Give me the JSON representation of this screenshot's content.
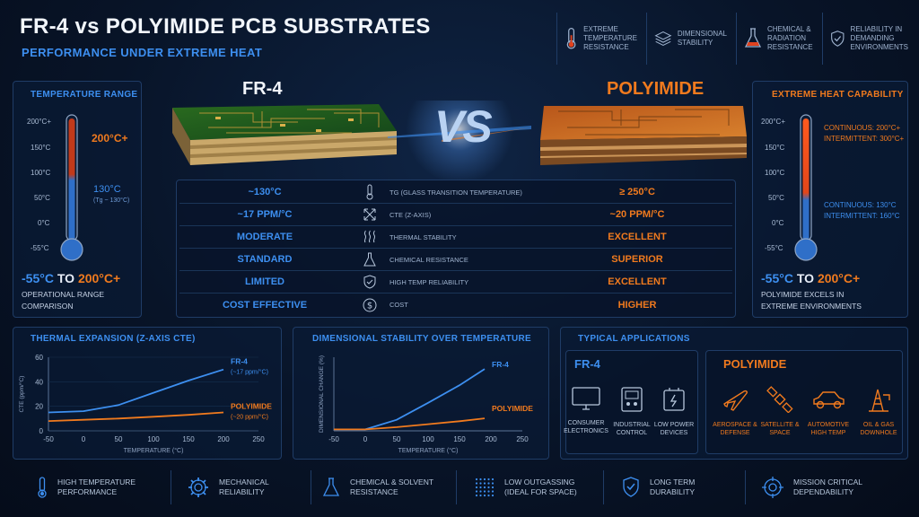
{
  "header": {
    "title": "FR-4 vs POLYIMIDE PCB SUBSTRATES",
    "subtitle": "PERFORMANCE UNDER EXTREME HEAT"
  },
  "features_top": [
    {
      "label_line1": "EXTREME",
      "label_line2": "TEMPERATURE",
      "label_line3": "RESISTANCE",
      "icon": "thermometer-icon"
    },
    {
      "label_line1": "DIMENSIONAL",
      "label_line2": "STABILITY",
      "label_line3": "",
      "icon": "layers-icon"
    },
    {
      "label_line1": "CHEMICAL &",
      "label_line2": "RADIATION",
      "label_line3": "RESISTANCE",
      "icon": "flask-icon"
    },
    {
      "label_line1": "RELIABILITY IN",
      "label_line2": "DEMANDING",
      "label_line3": "ENVIRONMENTS",
      "icon": "shield-check-icon"
    }
  ],
  "left_panel": {
    "title": "TEMPERATURE RANGE",
    "ticks": [
      "200°C+",
      "150°C",
      "100°C",
      "50°C",
      "0°C",
      "-55°C"
    ],
    "hot_label": "200°C+",
    "tg_label": "130°C",
    "tg_note": "(Tg ~ 130°C)",
    "range_low": "-55°C",
    "range_to": "TO",
    "range_high": "200°C+",
    "caption_line1": "OPERATIONAL RANGE",
    "caption_line2": "COMPARISON"
  },
  "right_panel": {
    "title": "EXTREME HEAT CAPABILITY",
    "ticks": [
      "200°C+",
      "150°C",
      "100°C",
      "50°C",
      "0°C",
      "-55°C"
    ],
    "continuous_hot": "CONTINUOUS: 200°C+",
    "intermittent_hot": "INTERMITTENT: 300°C+",
    "continuous_low": "CONTINUOUS: 130°C",
    "intermittent_low": "INTERMITTENT: 160°C",
    "range_low": "-55°C",
    "range_to": "TO",
    "range_high": "200°C+",
    "caption_line1": "POLYIMIDE EXCELS IN",
    "caption_line2": "EXTREME ENVIRONMENTS"
  },
  "compare": {
    "left_name": "FR-4",
    "vs": "VS",
    "right_name": "POLYIMIDE",
    "rows": [
      {
        "fr4": "~130°C",
        "icon": "thermometer-icon",
        "prop": "Tg (GLASS TRANSITION TEMPERATURE)",
        "pi": "≥ 250°C"
      },
      {
        "fr4": "~17 ppm/°C",
        "icon": "expand-arrows-icon",
        "prop": "CTE (Z-AXIS)",
        "pi": "~20 ppm/°C"
      },
      {
        "fr4": "MODERATE",
        "icon": "heat-waves-icon",
        "prop": "THERMAL STABILITY",
        "pi": "EXCELLENT"
      },
      {
        "fr4": "STANDARD",
        "icon": "flask-icon",
        "prop": "CHEMICAL RESISTANCE",
        "pi": "SUPERIOR"
      },
      {
        "fr4": "LIMITED",
        "icon": "shield-check-icon",
        "prop": "HIGH TEMP RELIABILITY",
        "pi": "EXCELLENT"
      },
      {
        "fr4": "COST EFFECTIVE",
        "icon": "dollar-icon",
        "prop": "COST",
        "pi": "HIGHER"
      }
    ]
  },
  "chart_data": [
    {
      "type": "line",
      "title": "THERMAL EXPANSION (Z-AXIS CTE)",
      "xlabel": "TEMPERATURE (°C)",
      "ylabel": "CTE (ppm/°C)",
      "xlim": [
        -50,
        250
      ],
      "ylim": [
        0,
        60
      ],
      "xticks": [
        "-50",
        "0",
        "50",
        "100",
        "150",
        "200",
        "250"
      ],
      "yticks": [
        "60",
        "40",
        "20",
        "0"
      ],
      "series": [
        {
          "name": "FR-4",
          "note": "(~17 ppm/°C)",
          "color": "#3d8ff0",
          "x": [
            -50,
            0,
            50,
            100,
            150,
            200
          ],
          "y": [
            15,
            16,
            21,
            31,
            41,
            50
          ]
        },
        {
          "name": "POLYIMIDE",
          "note": "(~20 ppm/°C)",
          "color": "#f07a1e",
          "x": [
            -50,
            0,
            50,
            100,
            150,
            200
          ],
          "y": [
            8,
            9,
            10,
            11.5,
            13,
            15
          ]
        }
      ]
    },
    {
      "type": "line",
      "title": "DIMENSIONAL STABILITY OVER TEMPERATURE",
      "xlabel": "TEMPERATURE (°C)",
      "ylabel": "DIMENSIONAL CHANGE (%)",
      "xlim": [
        -50,
        250
      ],
      "ylim": [
        0,
        1
      ],
      "xticks": [
        "-50",
        "0",
        "50",
        "100",
        "150",
        "200",
        "250"
      ],
      "yticks": [],
      "series": [
        {
          "name": "FR-4",
          "color": "#3d8ff0",
          "x": [
            -50,
            0,
            50,
            100,
            150,
            190
          ],
          "y": [
            0.02,
            0.02,
            0.15,
            0.38,
            0.62,
            0.84
          ]
        },
        {
          "name": "POLYIMIDE",
          "color": "#f07a1e",
          "x": [
            -50,
            0,
            50,
            100,
            150,
            190
          ],
          "y": [
            0.02,
            0.02,
            0.05,
            0.09,
            0.13,
            0.17
          ]
        }
      ]
    }
  ],
  "applications": {
    "title": "TYPICAL APPLICATIONS",
    "fr4_title": "FR-4",
    "pi_title": "POLYIMIDE",
    "fr4_items": [
      {
        "l1": "CONSUMER",
        "l2": "ELECTRONICS",
        "icon": "monitor-icon"
      },
      {
        "l1": "INDUSTRIAL",
        "l2": "CONTROL",
        "icon": "controller-icon"
      },
      {
        "l1": "LOW POWER",
        "l2": "DEVICES",
        "icon": "battery-icon"
      }
    ],
    "pi_items": [
      {
        "l1": "AEROSPACE &",
        "l2": "DEFENSE",
        "icon": "airplane-icon"
      },
      {
        "l1": "SATELLITE &",
        "l2": "SPACE",
        "icon": "satellite-icon"
      },
      {
        "l1": "AUTOMOTIVE",
        "l2": "HIGH TEMP",
        "icon": "car-icon"
      },
      {
        "l1": "OIL & GAS",
        "l2": "DOWNHOLE",
        "icon": "oil-rig-icon"
      }
    ]
  },
  "bottom_bar": [
    {
      "l1": "HIGH TEMPERATURE",
      "l2": "PERFORMANCE",
      "icon": "thermometer-icon"
    },
    {
      "l1": "MECHANICAL",
      "l2": "RELIABILITY",
      "icon": "gear-icon"
    },
    {
      "l1": "CHEMICAL & SOLVENT",
      "l2": "RESISTANCE",
      "icon": "flask-icon"
    },
    {
      "l1": "LOW OUTGASSING",
      "l2": "(IDEAL FOR SPACE)",
      "icon": "dots-grid-icon"
    },
    {
      "l1": "LONG TERM",
      "l2": "DURABILITY",
      "icon": "shield-check-icon"
    },
    {
      "l1": "MISSION CRITICAL",
      "l2": "DEPENDABILITY",
      "icon": "target-icon"
    }
  ],
  "colors": {
    "accent_blue": "#3d8ff0",
    "accent_orange": "#f07a1e",
    "panel_border": "#1f3c66",
    "background": "#081428"
  }
}
